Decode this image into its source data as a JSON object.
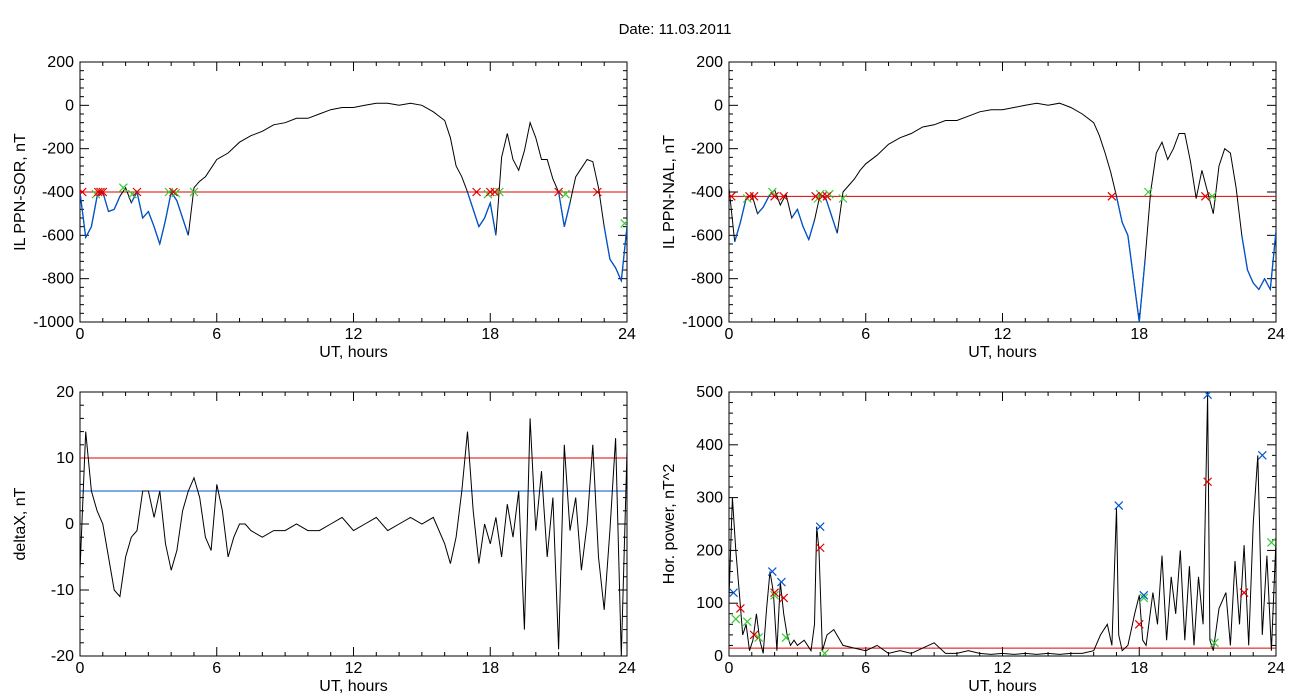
{
  "figure": {
    "title": "Date:  11.03.2011"
  },
  "colors": {
    "data_line": "#000000",
    "highlight_line": "#0055cc",
    "threshold_red": "#e00000",
    "threshold_blue": "#0055cc",
    "marker_red": "#e00000",
    "marker_green": "#33cc33",
    "marker_blue": "#0055cc"
  },
  "chart_data": [
    {
      "type": "line",
      "id": "il-ppn-sor",
      "xlabel": "UT, hours",
      "ylabel": "IL PPN-SOR, nT",
      "xlim": [
        0,
        24
      ],
      "ylim": [
        -1000,
        200
      ],
      "xticks": [
        0,
        6,
        12,
        18,
        24
      ],
      "yticks": [
        200,
        0,
        -200,
        -400,
        -600,
        -800,
        -1000
      ],
      "x": [
        0,
        0.25,
        0.5,
        0.75,
        1,
        1.25,
        1.5,
        1.75,
        2,
        2.25,
        2.5,
        2.75,
        3,
        3.25,
        3.5,
        3.75,
        4,
        4.25,
        4.5,
        4.75,
        5,
        5.25,
        5.5,
        5.75,
        6,
        6.5,
        7,
        7.5,
        8,
        8.5,
        9,
        9.5,
        10,
        10.5,
        11,
        11.5,
        12,
        12.5,
        13,
        13.5,
        14,
        14.5,
        15,
        15.5,
        16,
        16.25,
        16.5,
        16.75,
        17,
        17.25,
        17.5,
        17.75,
        18,
        18.25,
        18.5,
        18.75,
        19,
        19.25,
        19.5,
        19.75,
        20,
        20.25,
        20.5,
        20.75,
        21,
        21.25,
        21.5,
        21.75,
        22,
        22.25,
        22.5,
        22.75,
        23,
        23.25,
        23.5,
        23.75,
        24
      ],
      "y": [
        -400,
        -610,
        -560,
        -420,
        -400,
        -490,
        -480,
        -420,
        -380,
        -450,
        -400,
        -520,
        -490,
        -560,
        -640,
        -530,
        -400,
        -440,
        -520,
        -600,
        -380,
        -350,
        -330,
        -290,
        -250,
        -220,
        -170,
        -140,
        -120,
        -90,
        -80,
        -60,
        -60,
        -40,
        -20,
        -10,
        -10,
        0,
        10,
        10,
        0,
        10,
        0,
        -30,
        -70,
        -150,
        -280,
        -330,
        -400,
        -480,
        -560,
        -520,
        -450,
        -600,
        -240,
        -130,
        -250,
        -300,
        -210,
        -80,
        -150,
        -250,
        -250,
        -340,
        -400,
        -560,
        -450,
        -330,
        -290,
        -250,
        -260,
        -380,
        -560,
        -710,
        -750,
        -810,
        -560
      ],
      "threshold": {
        "value": -400,
        "color": "#e00000"
      },
      "markers_red_x": [
        0.1,
        0.8,
        0.9,
        1.0,
        2.5,
        4.1,
        17.4,
        18.0,
        18.2,
        21.0,
        22.7
      ],
      "markers_red_y": [
        -400,
        -400,
        -400,
        -400,
        -400,
        -400,
        -400,
        -400,
        -400,
        -400,
        -400
      ],
      "markers_green_x": [
        0.7,
        1.9,
        2.3,
        3.9,
        4.2,
        5.0,
        17.9,
        18.4,
        21.3,
        23.9
      ],
      "markers_green_y": [
        -410,
        -380,
        -410,
        -400,
        -405,
        -400,
        -410,
        -400,
        -410,
        -545
      ]
    },
    {
      "type": "line",
      "id": "il-ppn-nal",
      "xlabel": "UT, hours",
      "ylabel": "IL PPN-NAL, nT",
      "xlim": [
        0,
        24
      ],
      "ylim": [
        -1000,
        200
      ],
      "xticks": [
        0,
        6,
        12,
        18,
        24
      ],
      "yticks": [
        200,
        0,
        -200,
        -400,
        -600,
        -800,
        -1000
      ],
      "x": [
        0,
        0.25,
        0.5,
        0.75,
        1,
        1.25,
        1.5,
        1.75,
        2,
        2.25,
        2.5,
        2.75,
        3,
        3.25,
        3.5,
        3.75,
        4,
        4.25,
        4.5,
        4.75,
        5,
        5.25,
        5.5,
        5.75,
        6,
        6.5,
        7,
        7.5,
        8,
        8.5,
        9,
        9.5,
        10,
        10.5,
        11,
        11.5,
        12,
        12.5,
        13,
        13.5,
        14,
        14.5,
        15,
        15.5,
        16,
        16.25,
        16.5,
        16.75,
        17,
        17.25,
        17.5,
        17.75,
        18,
        18.25,
        18.5,
        18.75,
        19,
        19.25,
        19.5,
        19.75,
        20,
        20.25,
        20.5,
        20.75,
        21,
        21.25,
        21.5,
        21.75,
        22,
        22.25,
        22.5,
        22.75,
        23,
        23.25,
        23.5,
        23.75,
        24
      ],
      "y": [
        -380,
        -630,
        -540,
        -430,
        -410,
        -500,
        -470,
        -420,
        -390,
        -460,
        -410,
        -520,
        -480,
        -560,
        -620,
        -530,
        -410,
        -430,
        -510,
        -590,
        -400,
        -370,
        -340,
        -300,
        -270,
        -230,
        -180,
        -150,
        -130,
        -100,
        -90,
        -70,
        -70,
        -50,
        -30,
        -20,
        -20,
        -10,
        0,
        10,
        0,
        10,
        -10,
        -40,
        -80,
        -140,
        -220,
        -310,
        -420,
        -540,
        -600,
        -800,
        -1000,
        -720,
        -400,
        -220,
        -170,
        -250,
        -200,
        -130,
        -130,
        -260,
        -430,
        -300,
        -400,
        -500,
        -280,
        -200,
        -220,
        -380,
        -600,
        -760,
        -820,
        -850,
        -800,
        -850,
        -580
      ],
      "threshold": {
        "value": -420,
        "color": "#e00000"
      },
      "markers_red_x": [
        0.1,
        0.9,
        1.1,
        2.0,
        2.4,
        3.8,
        4.1,
        4.3,
        16.8,
        20.9
      ],
      "markers_red_y": [
        -420,
        -420,
        -420,
        -420,
        -420,
        -420,
        -420,
        -420,
        -420,
        -420
      ],
      "markers_green_x": [
        0.8,
        1.9,
        3.9,
        4.0,
        4.4,
        5.0,
        18.4,
        21.2
      ],
      "markers_green_y": [
        -430,
        -400,
        -430,
        -410,
        -410,
        -430,
        -400,
        -420
      ]
    },
    {
      "type": "line",
      "id": "deltax",
      "xlabel": "UT, hours",
      "ylabel": "deltaX, nT",
      "xlim": [
        0,
        24
      ],
      "ylim": [
        -20,
        20
      ],
      "xticks": [
        0,
        6,
        12,
        18,
        24
      ],
      "yticks": [
        20,
        10,
        0,
        -10,
        -20
      ],
      "x": [
        0,
        0.25,
        0.5,
        0.75,
        1,
        1.25,
        1.5,
        1.75,
        2,
        2.25,
        2.5,
        2.75,
        3,
        3.25,
        3.5,
        3.75,
        4,
        4.25,
        4.5,
        4.75,
        5,
        5.25,
        5.5,
        5.75,
        6,
        6.25,
        6.5,
        6.75,
        7,
        7.25,
        7.5,
        8,
        8.5,
        9,
        9.5,
        10,
        10.5,
        11,
        11.5,
        12,
        12.5,
        13,
        13.5,
        14,
        14.5,
        15,
        15.5,
        16,
        16.25,
        16.5,
        16.75,
        17,
        17.25,
        17.5,
        17.75,
        18,
        18.25,
        18.5,
        18.75,
        19,
        19.25,
        19.5,
        19.75,
        20,
        20.25,
        20.5,
        20.75,
        21,
        21.25,
        21.5,
        21.75,
        22,
        22.25,
        22.5,
        22.75,
        23,
        23.25,
        23.5,
        23.75,
        24
      ],
      "y": [
        -7,
        14,
        5,
        2,
        0,
        -5,
        -10,
        -11,
        -5,
        -2,
        -1,
        5,
        5,
        1,
        5,
        -3,
        -7,
        -4,
        2,
        5,
        7,
        4,
        -2,
        -4,
        6,
        2,
        -5,
        -2,
        0,
        0,
        -1,
        -2,
        -1,
        -1,
        0,
        -1,
        -1,
        0,
        1,
        -1,
        0,
        1,
        -1,
        0,
        1,
        0,
        1,
        -3,
        -6,
        -2,
        5,
        14,
        2,
        -6,
        0,
        -3,
        1,
        -5,
        3,
        -2,
        5,
        -16,
        16,
        -1,
        8,
        -5,
        4,
        -19,
        12,
        -1,
        4,
        -7,
        0,
        12,
        -5,
        -13,
        -1,
        13,
        -20,
        11
      ],
      "threshold_red": 10,
      "threshold_blue": 5
    },
    {
      "type": "line",
      "id": "hor-power",
      "xlabel": "UT, hours",
      "ylabel": "Hor. power, nT^2",
      "xlim": [
        0,
        24
      ],
      "ylim": [
        0,
        500
      ],
      "xticks": [
        0,
        6,
        12,
        18,
        24
      ],
      "yticks": [
        0,
        100,
        200,
        300,
        400,
        500
      ],
      "x": [
        0,
        0.15,
        0.3,
        0.45,
        0.6,
        0.75,
        0.9,
        1.05,
        1.2,
        1.35,
        1.5,
        1.65,
        1.8,
        1.95,
        2.1,
        2.25,
        2.4,
        2.55,
        2.7,
        2.85,
        3,
        3.3,
        3.6,
        3.75,
        3.85,
        3.95,
        4.1,
        4.3,
        4.6,
        5,
        5.5,
        6,
        6.5,
        7,
        7.5,
        8,
        8.5,
        9,
        9.5,
        10,
        10.5,
        11,
        11.5,
        12,
        12.5,
        13,
        13.5,
        14,
        14.5,
        15,
        15.5,
        16,
        16.3,
        16.6,
        16.8,
        17,
        17.1,
        17.25,
        17.5,
        17.8,
        18,
        18.15,
        18.3,
        18.6,
        18.8,
        19,
        19.2,
        19.4,
        19.6,
        19.8,
        20,
        20.2,
        20.4,
        20.6,
        20.8,
        21,
        21.1,
        21.25,
        21.5,
        21.8,
        22,
        22.2,
        22.4,
        22.6,
        22.8,
        23,
        23.2,
        23.4,
        23.6,
        23.8,
        24
      ],
      "y": [
        110,
        300,
        200,
        120,
        40,
        60,
        10,
        30,
        80,
        30,
        5,
        90,
        160,
        120,
        10,
        140,
        80,
        40,
        20,
        30,
        20,
        30,
        10,
        60,
        245,
        200,
        10,
        40,
        50,
        20,
        15,
        10,
        20,
        5,
        10,
        5,
        15,
        25,
        5,
        5,
        10,
        5,
        3,
        5,
        3,
        5,
        3,
        5,
        3,
        5,
        5,
        10,
        40,
        60,
        20,
        280,
        40,
        10,
        20,
        80,
        115,
        30,
        20,
        120,
        60,
        190,
        30,
        150,
        80,
        200,
        30,
        170,
        20,
        150,
        60,
        495,
        30,
        10,
        90,
        120,
        20,
        180,
        60,
        210,
        20,
        250,
        380,
        40,
        190,
        10,
        220
      ],
      "threshold": {
        "value": 15,
        "color": "#e00000"
      },
      "markers_blue_x": [
        0.2,
        1.9,
        2.3,
        4.0,
        17.1,
        18.2,
        21.0,
        23.4
      ],
      "markers_blue_y": [
        120,
        160,
        140,
        245,
        285,
        115,
        495,
        380
      ],
      "markers_red_x": [
        0.5,
        1.1,
        2.0,
        2.4,
        4.0,
        18.0,
        21.0,
        22.6
      ],
      "markers_red_y": [
        90,
        40,
        120,
        110,
        205,
        60,
        330,
        120
      ],
      "markers_green_x": [
        0.3,
        0.8,
        1.3,
        2.0,
        2.5,
        4.2,
        18.2,
        21.3,
        23.8
      ],
      "markers_green_y": [
        70,
        65,
        35,
        115,
        35,
        5,
        110,
        25,
        215
      ]
    }
  ]
}
